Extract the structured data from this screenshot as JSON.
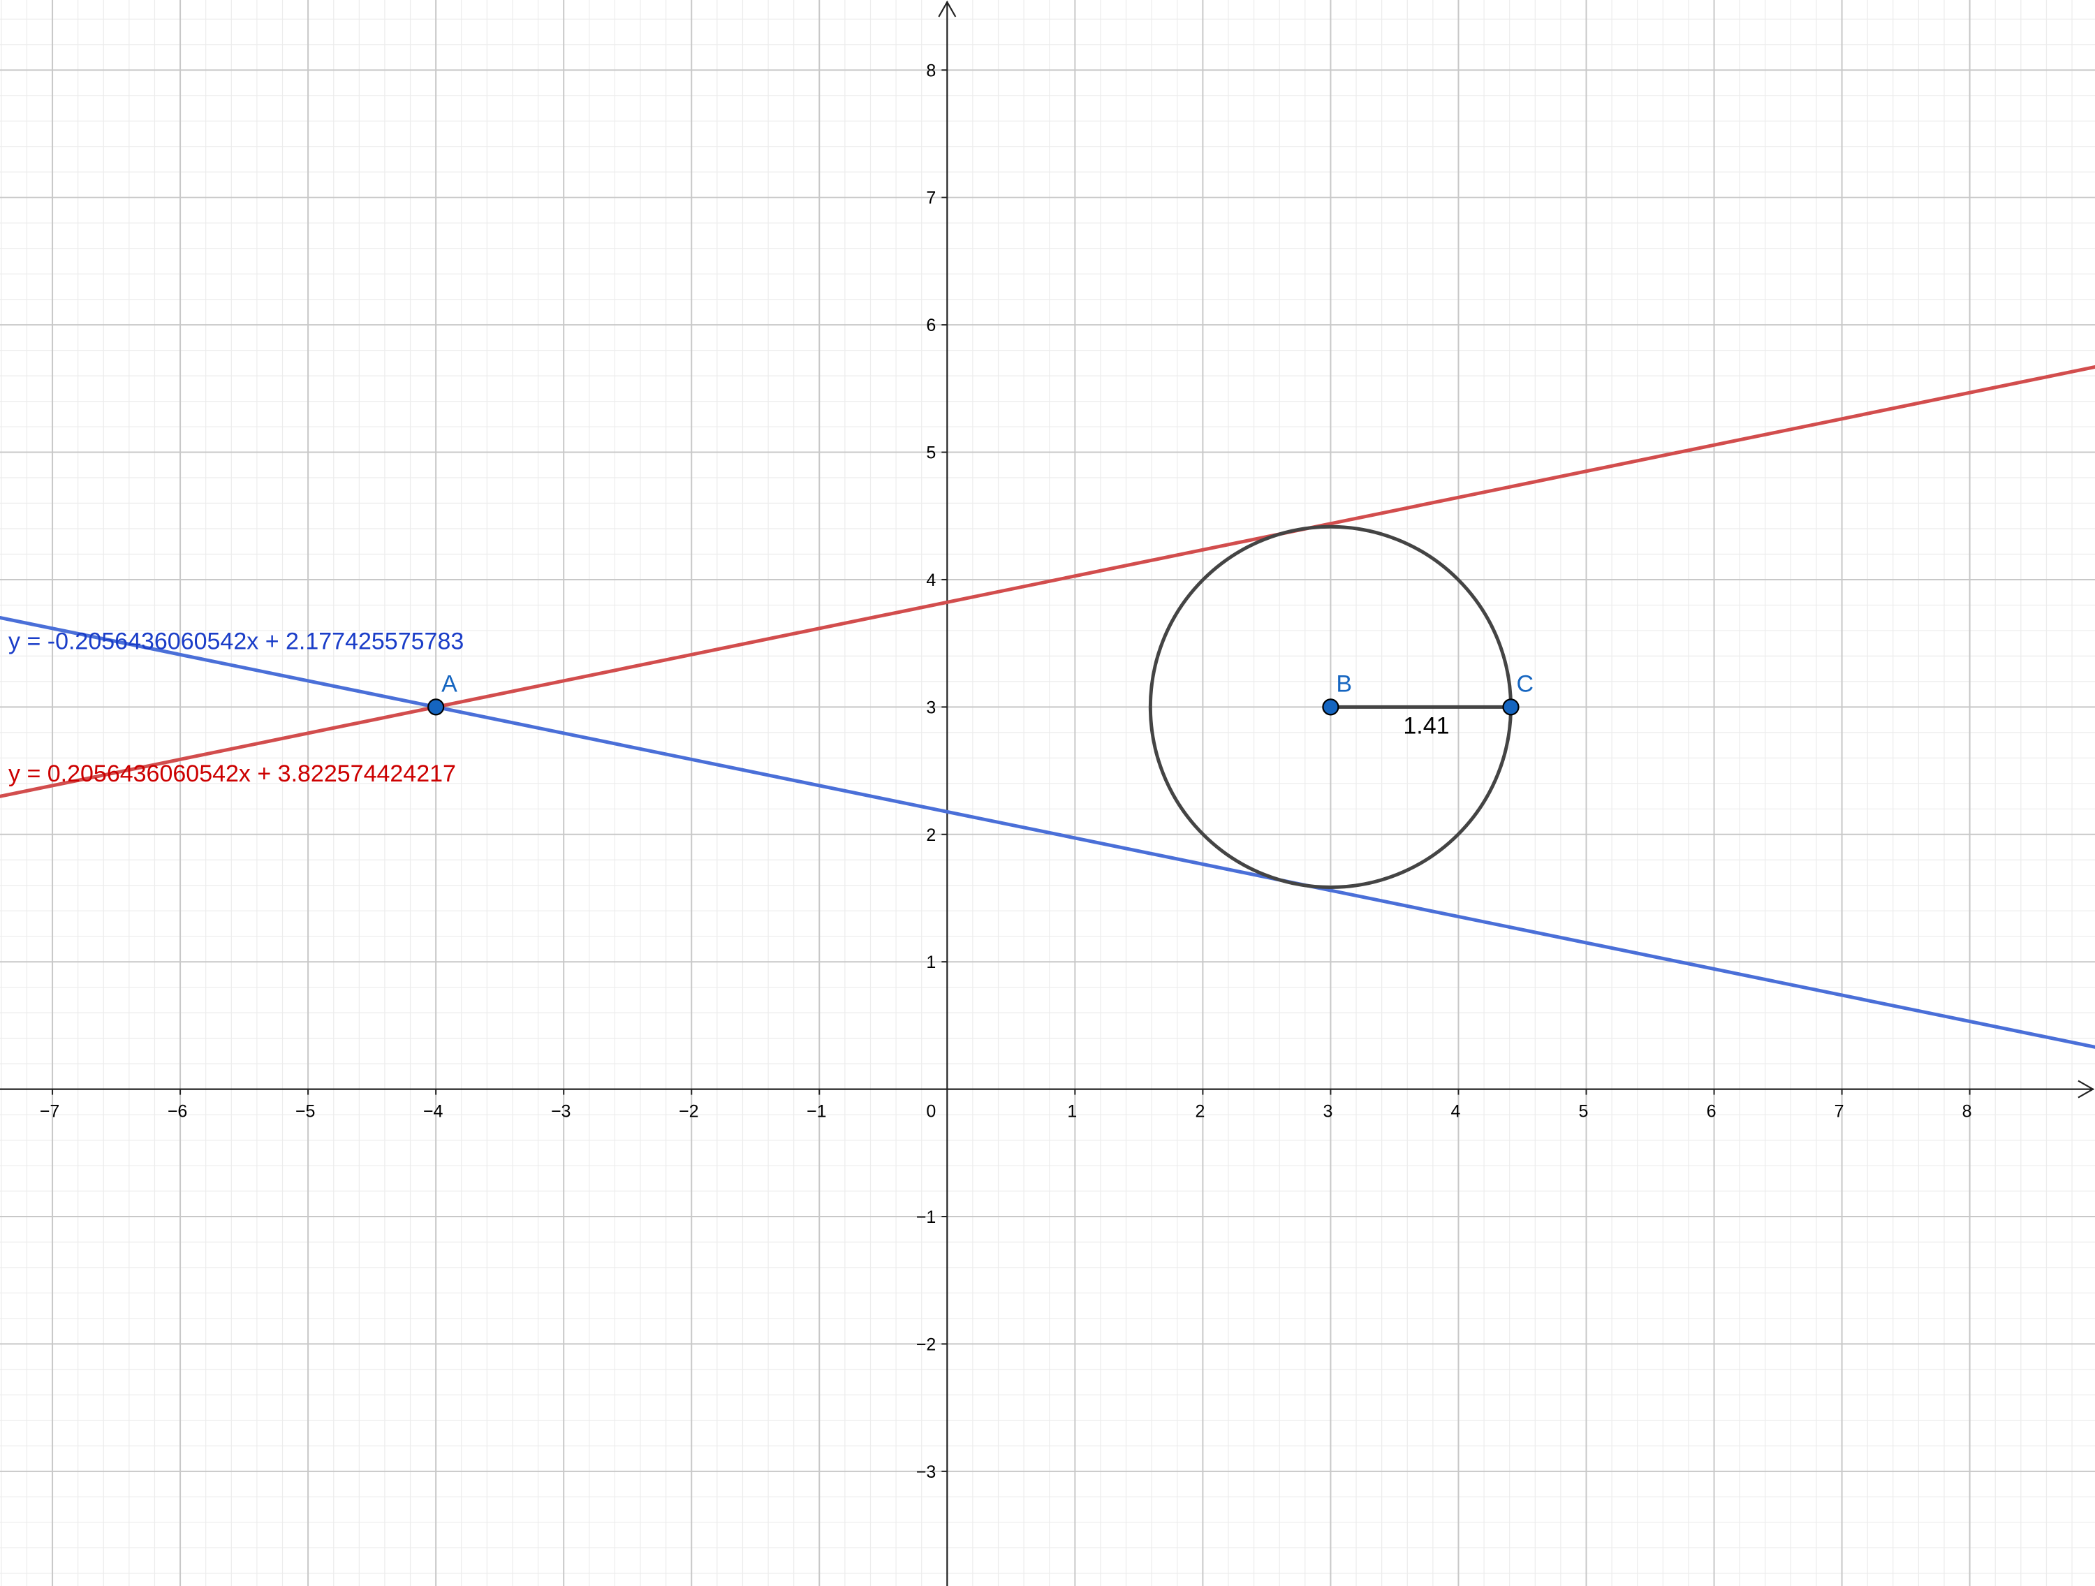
{
  "chart_data": {
    "type": "line",
    "title": "",
    "xlabel": "",
    "ylabel": "",
    "xlim": [
      -7.41,
      8.98
    ],
    "ylim": [
      -3.9,
      8.55
    ],
    "grid": true,
    "minor_grid_per_unit": 5,
    "x_ticks": [
      -7,
      -6,
      -5,
      -4,
      -3,
      -2,
      -1,
      1,
      2,
      3,
      4,
      5,
      6,
      7,
      8
    ],
    "y_ticks": [
      -3,
      -2,
      -1,
      1,
      2,
      3,
      4,
      5,
      6,
      7,
      8
    ],
    "tick_labels": {
      "x": [
        "−7",
        "−6",
        "−5",
        "−4",
        "−3",
        "−2",
        "−1",
        "1",
        "2",
        "3",
        "4",
        "5",
        "6",
        "7",
        "8"
      ],
      "y": [
        "−3",
        "−2",
        "−1",
        "1",
        "2",
        "3",
        "4",
        "5",
        "6",
        "7",
        "8"
      ],
      "origin": "0"
    },
    "lines": [
      {
        "equation": "y = -0.2056436060542x + 2.177425575783",
        "slope": -0.2056436060542,
        "intercept": 2.177425575783,
        "color": "#4a6fd8",
        "label_color": "#1a3dc8"
      },
      {
        "equation": "y = 0.2056436060542x + 3.822574424217",
        "slope": 0.2056436060542,
        "intercept": 3.822574424217,
        "color": "#d24d4d",
        "label_color": "#cc0000"
      }
    ],
    "circle": {
      "center": [
        3,
        3
      ],
      "radius": 1.41,
      "color": "#444444"
    },
    "points": [
      {
        "label": "A",
        "x": -4,
        "y": 3
      },
      {
        "label": "B",
        "x": 3,
        "y": 3
      },
      {
        "label": "C",
        "x": 4.41,
        "y": 3
      }
    ],
    "segment": {
      "from": "B",
      "to": "C",
      "label": "1.41",
      "color": "#444444"
    },
    "point_color": "#1565c0"
  }
}
